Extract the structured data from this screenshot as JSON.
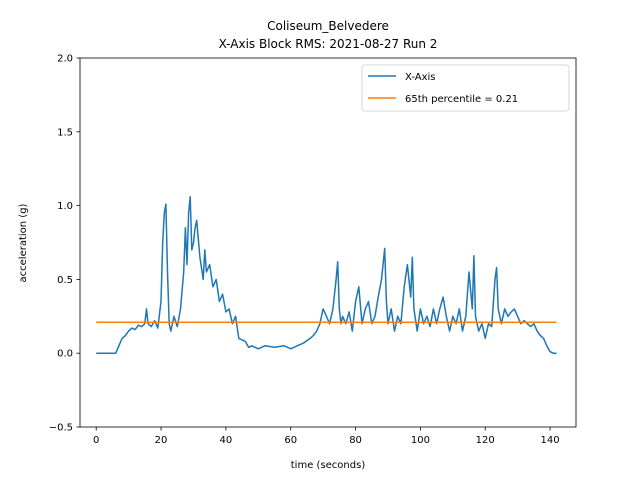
{
  "chart_data": {
    "type": "line",
    "title_line1": "Coliseum_Belvedere",
    "title_line2": "X-Axis Block RMS: 2021-08-27 Run 2",
    "xlabel": "time (seconds)",
    "ylabel": "acceleration (g)",
    "xlim": [
      -5,
      148
    ],
    "ylim": [
      -0.5,
      2.0
    ],
    "xticks": [
      0,
      20,
      40,
      60,
      80,
      100,
      120,
      140
    ],
    "yticks": [
      -0.5,
      0.0,
      0.5,
      1.0,
      1.5,
      2.0
    ],
    "ytick_labels": [
      "−0.5",
      "0.0",
      "0.5",
      "1.0",
      "1.5",
      "2.0"
    ],
    "grid": false,
    "legend_position": "top-right",
    "series": [
      {
        "name": "X-Axis",
        "color": "#1f77b4",
        "x": [
          0,
          6,
          7,
          8,
          9,
          10,
          11,
          12,
          13,
          14,
          15,
          15.5,
          16,
          17,
          18,
          19,
          20,
          20.5,
          21,
          21.5,
          22,
          22.5,
          23,
          24,
          25,
          26,
          27,
          27.5,
          28,
          28.5,
          29,
          29.5,
          30,
          30.5,
          31,
          32,
          33,
          33.5,
          34,
          35,
          36,
          37,
          38,
          39,
          40,
          41,
          42,
          43,
          44,
          45,
          46,
          47,
          48,
          50,
          52,
          55,
          58,
          60,
          62,
          64,
          66,
          67,
          68,
          69,
          70,
          71,
          72,
          73,
          74,
          74.5,
          75,
          75.5,
          76,
          77,
          78,
          79,
          80,
          81,
          82,
          83,
          84,
          85,
          86,
          87,
          88,
          89,
          89.5,
          90,
          91,
          92,
          93,
          94,
          95,
          96,
          97,
          97.5,
          98,
          99,
          100,
          101,
          102,
          103,
          104,
          105,
          106,
          107,
          108,
          109,
          110,
          111,
          112,
          113,
          114,
          115,
          116,
          116.5,
          117,
          118,
          119,
          120,
          121,
          122,
          123,
          123.5,
          124,
          125,
          126,
          127,
          128,
          129,
          130,
          131,
          132,
          133,
          134,
          135,
          136,
          137,
          138,
          139,
          140,
          141,
          142
        ],
        "y": [
          0.0,
          0.0,
          0.05,
          0.1,
          0.12,
          0.15,
          0.17,
          0.16,
          0.19,
          0.18,
          0.2,
          0.3,
          0.2,
          0.18,
          0.22,
          0.17,
          0.35,
          0.75,
          0.95,
          1.01,
          0.55,
          0.2,
          0.15,
          0.25,
          0.18,
          0.3,
          0.55,
          0.85,
          0.6,
          0.95,
          1.06,
          0.7,
          0.75,
          0.85,
          0.9,
          0.65,
          0.5,
          0.7,
          0.55,
          0.6,
          0.45,
          0.5,
          0.35,
          0.4,
          0.28,
          0.3,
          0.2,
          0.25,
          0.1,
          0.09,
          0.08,
          0.04,
          0.05,
          0.03,
          0.05,
          0.04,
          0.05,
          0.03,
          0.05,
          0.07,
          0.1,
          0.12,
          0.15,
          0.2,
          0.3,
          0.25,
          0.2,
          0.3,
          0.5,
          0.62,
          0.3,
          0.2,
          0.25,
          0.2,
          0.28,
          0.15,
          0.35,
          0.45,
          0.2,
          0.3,
          0.35,
          0.2,
          0.25,
          0.38,
          0.5,
          0.71,
          0.35,
          0.2,
          0.3,
          0.15,
          0.25,
          0.2,
          0.45,
          0.6,
          0.38,
          0.65,
          0.3,
          0.15,
          0.3,
          0.2,
          0.25,
          0.18,
          0.3,
          0.2,
          0.3,
          0.38,
          0.25,
          0.15,
          0.25,
          0.2,
          0.3,
          0.15,
          0.25,
          0.55,
          0.3,
          0.66,
          0.25,
          0.15,
          0.2,
          0.1,
          0.2,
          0.18,
          0.5,
          0.58,
          0.3,
          0.2,
          0.3,
          0.25,
          0.28,
          0.3,
          0.25,
          0.2,
          0.22,
          0.2,
          0.18,
          0.2,
          0.15,
          0.12,
          0.1,
          0.05,
          0.01,
          0.0,
          0.0
        ]
      },
      {
        "name": "65th percentile = 0.21",
        "color": "#ff7f0e",
        "x": [
          0,
          142
        ],
        "y": [
          0.21,
          0.21
        ]
      }
    ]
  }
}
